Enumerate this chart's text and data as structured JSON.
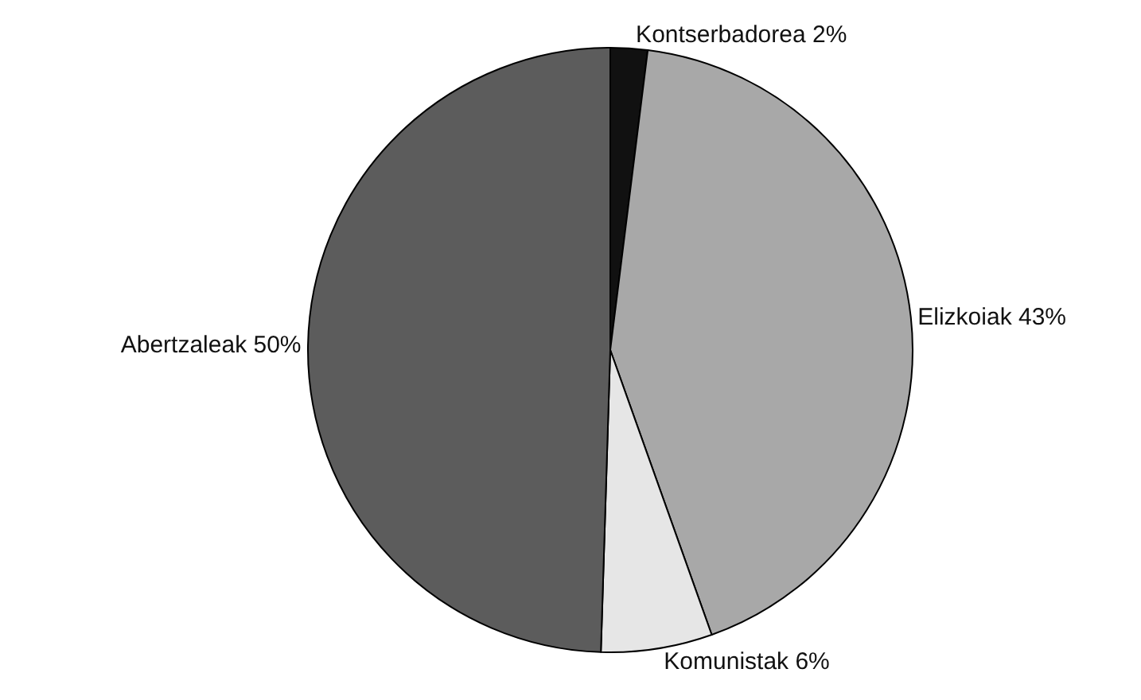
{
  "chart_data": {
    "type": "pie",
    "categories": [
      "Kontserbadorea",
      "Elizkoiak",
      "Komunistak",
      "Abertzaleak"
    ],
    "values": [
      2,
      43,
      6,
      50
    ],
    "value_labels": [
      "2%",
      "43%",
      "6%",
      "50%"
    ],
    "colors": [
      "#111111",
      "#a8a8a8",
      "#e6e6e6",
      "#5c5c5c"
    ],
    "legend": false
  }
}
